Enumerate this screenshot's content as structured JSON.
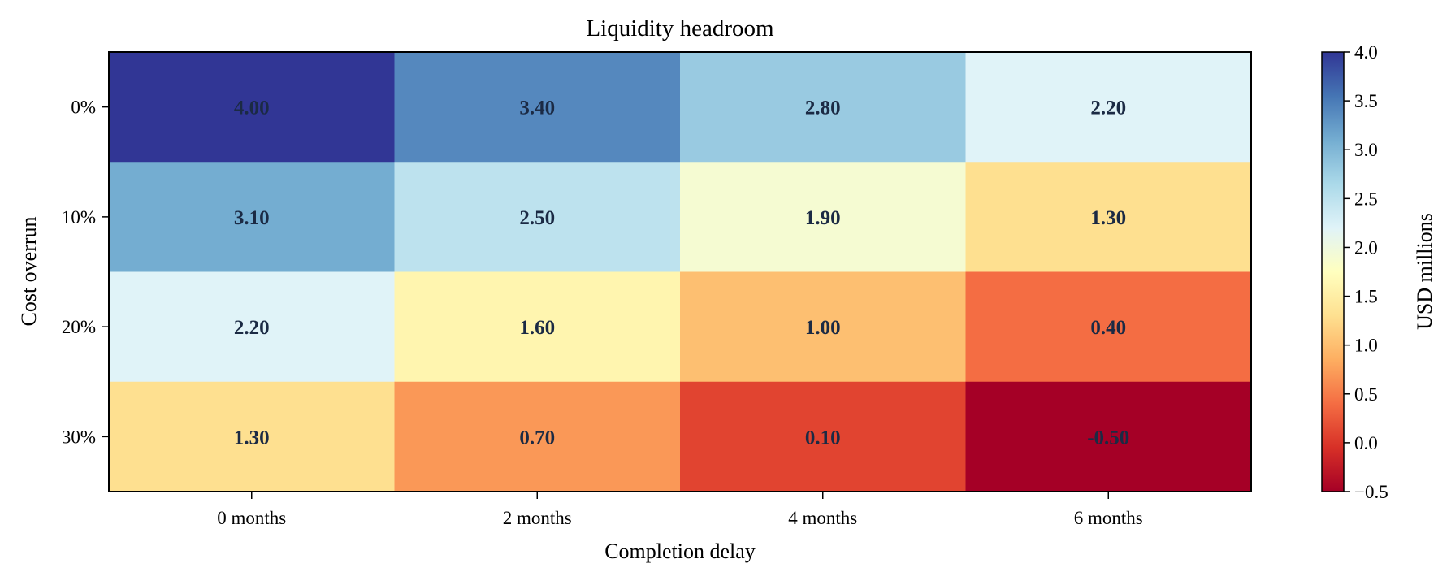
{
  "chart_data": {
    "type": "heatmap",
    "title": "Liquidity headroom",
    "xlabel": "Completion delay",
    "ylabel": "Cost overrun",
    "x_categories": [
      "0 months",
      "2 months",
      "4 months",
      "6 months"
    ],
    "y_categories": [
      "0%",
      "10%",
      "20%",
      "30%"
    ],
    "values": [
      [
        4.0,
        3.4,
        2.8,
        2.2
      ],
      [
        3.1,
        2.5,
        1.9,
        1.3
      ],
      [
        2.2,
        1.6,
        1.0,
        0.4
      ],
      [
        1.3,
        0.7,
        0.1,
        -0.5
      ]
    ],
    "value_labels": [
      [
        "4.00",
        "3.40",
        "2.80",
        "2.20"
      ],
      [
        "3.10",
        "2.50",
        "1.90",
        "1.30"
      ],
      [
        "2.20",
        "1.60",
        "1.00",
        "0.40"
      ],
      [
        "1.30",
        "0.70",
        "0.10",
        "-0.50"
      ]
    ],
    "colorbar": {
      "label": "USD millions",
      "range": [
        -0.5,
        4.0
      ],
      "ticks": [
        -0.5,
        0.0,
        0.5,
        1.0,
        1.5,
        2.0,
        2.5,
        3.0,
        3.5,
        4.0
      ],
      "tick_labels": [
        "−0.5",
        "0.0",
        "0.5",
        "1.0",
        "1.5",
        "2.0",
        "2.5",
        "3.0",
        "3.5",
        "4.0"
      ],
      "colormap": "RdYlBu",
      "stops": [
        "#a50026",
        "#d73027",
        "#f46d43",
        "#fdae61",
        "#fee090",
        "#ffffbf",
        "#e0f3f8",
        "#abd9e9",
        "#74add1",
        "#4575b4",
        "#313695"
      ]
    }
  }
}
